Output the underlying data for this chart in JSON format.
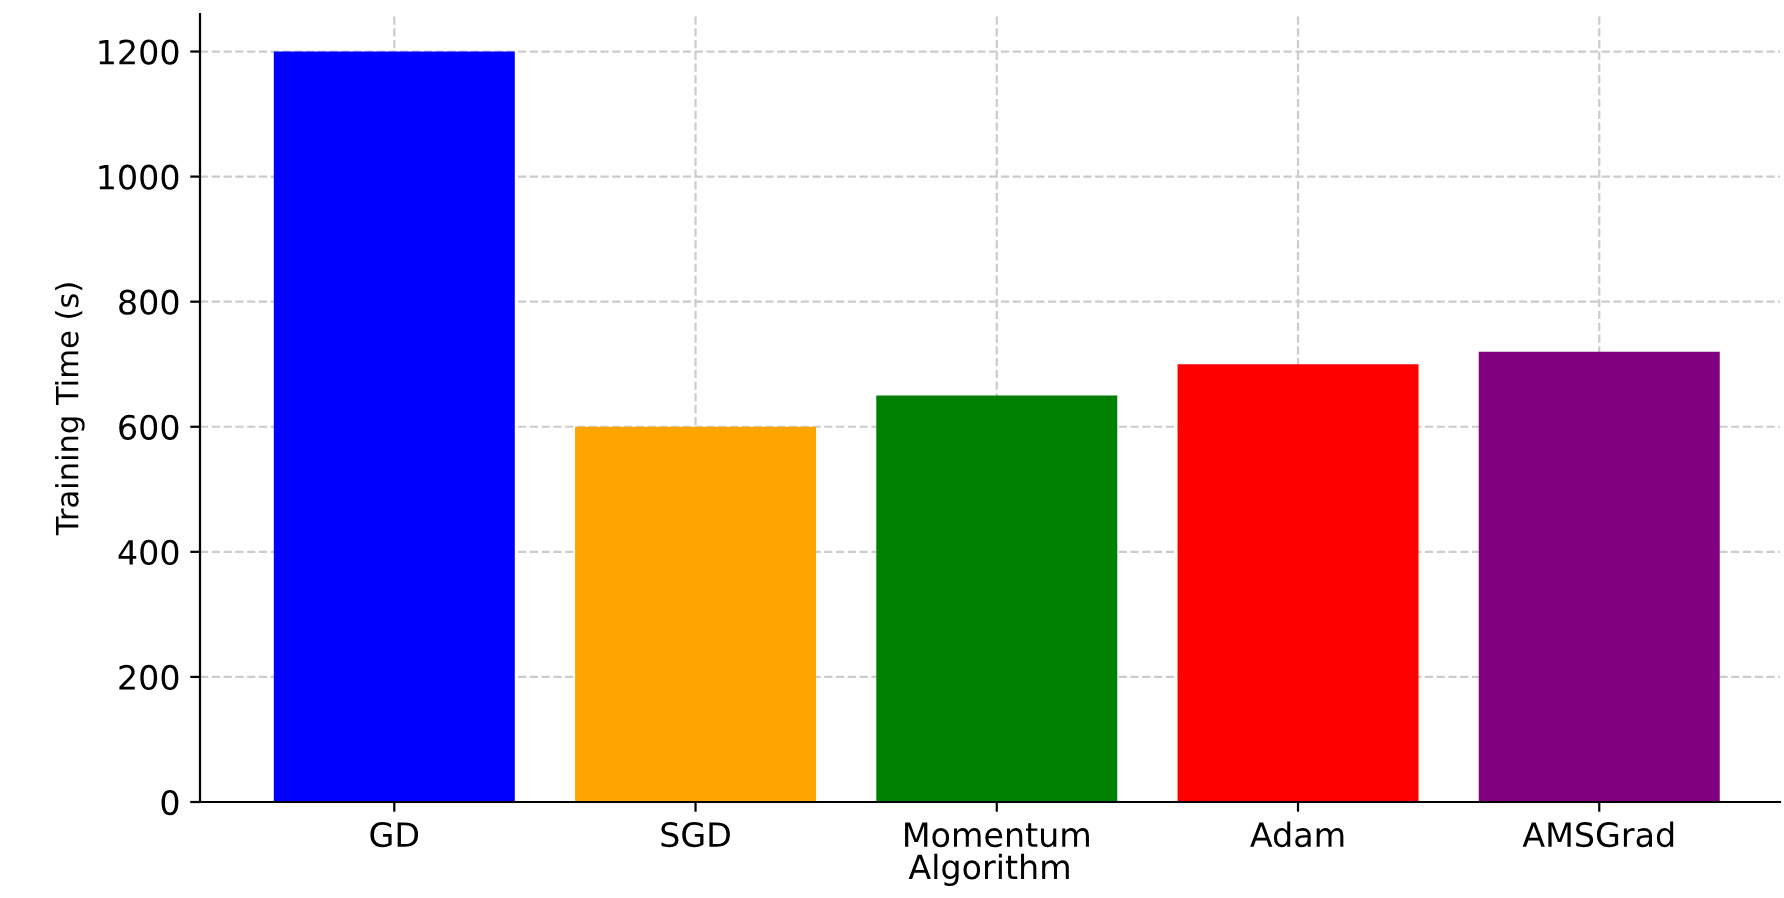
{
  "chart_data": {
    "type": "bar",
    "xlabel": "Algorithm",
    "ylabel": "Training Time (s)",
    "categories": [
      "GD",
      "SGD",
      "Momentum",
      "Adam",
      "AMSGrad"
    ],
    "values": [
      1200,
      600,
      650,
      700,
      720
    ],
    "colors": [
      "#0000ff",
      "#ffa500",
      "#008000",
      "#ff0000",
      "#800080"
    ],
    "ylim": [
      0,
      1260
    ],
    "yticks": [
      0,
      200,
      400,
      600,
      800,
      1000,
      1200
    ],
    "grid": true
  }
}
